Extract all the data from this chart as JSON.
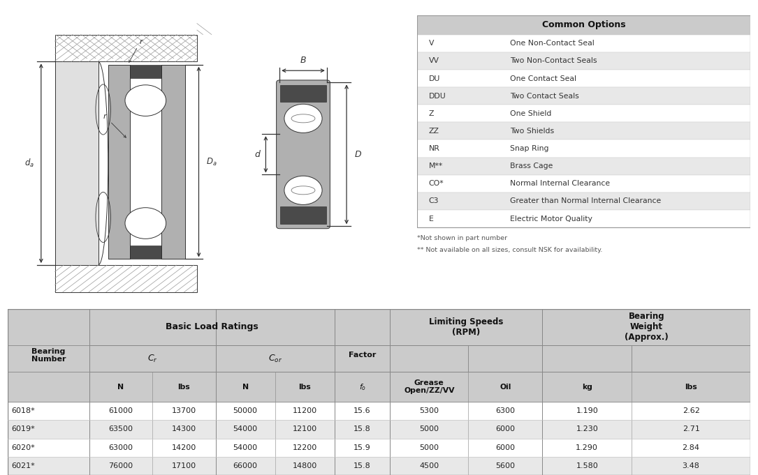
{
  "common_options": [
    [
      "V",
      "One Non-Contact Seal"
    ],
    [
      "VV",
      "Two Non-Contact Seals"
    ],
    [
      "DU",
      "One Contact Seal"
    ],
    [
      "DDU",
      "Two Contact Seals"
    ],
    [
      "Z",
      "One Shield"
    ],
    [
      "ZZ",
      "Two Shields"
    ],
    [
      "NR",
      "Snap Ring"
    ],
    [
      "M**",
      "Brass Cage"
    ],
    [
      "CO*",
      "Normal Internal Clearance"
    ],
    [
      "C3",
      "Greater than Normal Internal Clearance"
    ],
    [
      "E",
      "Electric Motor Quality"
    ]
  ],
  "bearing_data": [
    [
      "6018*",
      "61000",
      "13700",
      "50000",
      "11200",
      "15.6",
      "5300",
      "6300",
      "1.190",
      "2.62"
    ],
    [
      "6019*",
      "63500",
      "14300",
      "54000",
      "12100",
      "15.8",
      "5000",
      "6000",
      "1.230",
      "2.71"
    ],
    [
      "6020*",
      "63000",
      "14200",
      "54000",
      "12200",
      "15.9",
      "5000",
      "6000",
      "1.290",
      "2.84"
    ],
    [
      "6021*",
      "76000",
      "17100",
      "66000",
      "14800",
      "15.8",
      "4500",
      "5600",
      "1.580",
      "3.48"
    ]
  ],
  "footnote1": "*Not shown in part number",
  "footnote2": "** Not available on all sizes, consult NSK for availability.",
  "header_bg": "#cbcbcb",
  "alt_row_bg": "#e8e8e8",
  "white_bg": "#ffffff",
  "row_bg1": "#f5f5f5",
  "row_bg2": "#e8e8e8"
}
